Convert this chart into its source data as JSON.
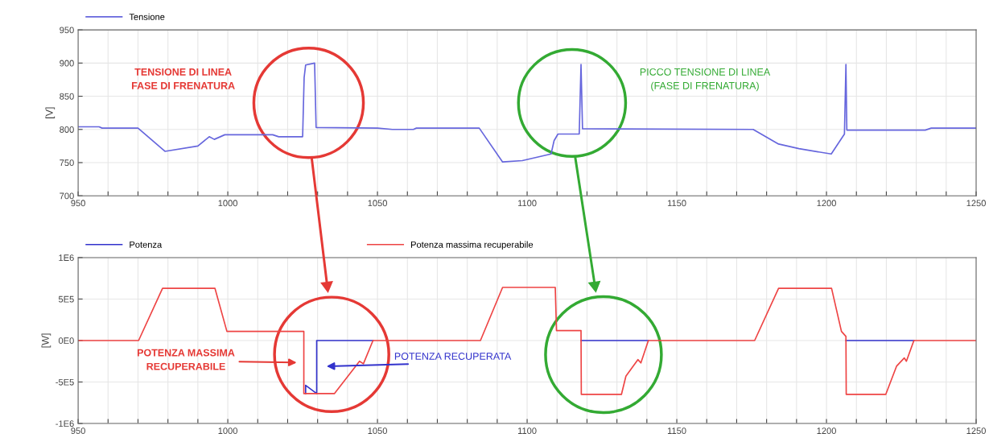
{
  "chart_data": [
    {
      "type": "line",
      "ylabel": "[V]",
      "legend": "top left",
      "grid": true,
      "xlim": [
        950,
        1250
      ],
      "ylim": [
        700,
        950
      ],
      "xticks": [
        950,
        {
          "value": 960,
          "label": null
        },
        {
          "value": 970,
          "label": null
        },
        {
          "value": 980,
          "label": null
        },
        {
          "value": 990,
          "label": null
        },
        1000,
        {
          "value": 1010,
          "label": null
        },
        {
          "value": 1020,
          "label": null
        },
        {
          "value": 1030,
          "label": null
        },
        {
          "value": 1040,
          "label": null
        },
        1050,
        {
          "value": 1060,
          "label": null
        },
        {
          "value": 1070,
          "label": null
        },
        {
          "value": 1080,
          "label": null
        },
        {
          "value": 1090,
          "label": null
        },
        1100,
        {
          "value": 1110,
          "label": null
        },
        {
          "value": 1120,
          "label": null
        },
        {
          "value": 1130,
          "label": null
        },
        {
          "value": 1140,
          "label": null
        },
        1150,
        {
          "value": 1160,
          "label": null
        },
        {
          "value": 1170,
          "label": null
        },
        {
          "value": 1180,
          "label": null
        },
        {
          "value": 1190,
          "label": null
        },
        1200,
        {
          "value": 1210,
          "label": null
        },
        {
          "value": 1220,
          "label": null
        },
        {
          "value": 1230,
          "label": null
        },
        {
          "value": 1240,
          "label": null
        },
        1250
      ],
      "yticks": [
        700,
        750,
        800,
        850,
        900,
        950
      ],
      "annotations": [
        "TENSIONE DI LINEA\nFASE DI FRENATURA",
        "PICCO TENSIONE DI LINEA\n(FASE DI FRENATURA)"
      ],
      "series": [
        {
          "name": "Tensione",
          "color": "#6666dd",
          "x": [
            950,
            957,
            958,
            970,
            979,
            990,
            993.8,
            995.5,
            999,
            1015,
            1017,
            1025,
            1025.5,
            1026,
            1029,
            1029.5,
            1050,
            1055,
            1062,
            1063,
            1084,
            1091.8,
            1098.4,
            1108,
            1109,
            1110.3,
            1117.4,
            1118,
            1118.5,
            1175.5,
            1184,
            1190.8,
            1201.6,
            1206,
            1206.5,
            1206.8,
            1225.5,
            1233,
            1235,
            1250
          ],
          "values": [
            804,
            804,
            802,
            802,
            767,
            775,
            789,
            785,
            792,
            792,
            789,
            789,
            878,
            897,
            900,
            803,
            802,
            800,
            800,
            802,
            802,
            751,
            753,
            763,
            783,
            793,
            793,
            898,
            801,
            800,
            778,
            771,
            763,
            793,
            898,
            799,
            799,
            799,
            802,
            802
          ]
        }
      ]
    },
    {
      "type": "line",
      "ylabel": "[W]",
      "legend": "top left",
      "grid": true,
      "xlim": [
        950,
        1250
      ],
      "ylim": [
        -1000000,
        1000000
      ],
      "xticks": [
        950,
        {
          "value": 960,
          "label": null
        },
        {
          "value": 970,
          "label": null
        },
        {
          "value": 980,
          "label": null
        },
        {
          "value": 990,
          "label": null
        },
        1000,
        {
          "value": 1010,
          "label": null
        },
        {
          "value": 1020,
          "label": null
        },
        {
          "value": 1030,
          "label": null
        },
        {
          "value": 1040,
          "label": null
        },
        1050,
        {
          "value": 1060,
          "label": null
        },
        {
          "value": 1070,
          "label": null
        },
        {
          "value": 1080,
          "label": null
        },
        {
          "value": 1090,
          "label": null
        },
        1100,
        {
          "value": 1110,
          "label": null
        },
        {
          "value": 1120,
          "label": null
        },
        {
          "value": 1130,
          "label": null
        },
        {
          "value": 1140,
          "label": null
        },
        1150,
        {
          "value": 1160,
          "label": null
        },
        {
          "value": 1170,
          "label": null
        },
        {
          "value": 1180,
          "label": null
        },
        {
          "value": 1190,
          "label": null
        },
        1200,
        {
          "value": 1210,
          "label": null
        },
        {
          "value": 1220,
          "label": null
        },
        {
          "value": 1230,
          "label": null
        },
        {
          "value": 1240,
          "label": null
        },
        1250
      ],
      "yticks": [
        {
          "value": -1000000,
          "label": "-1E6"
        },
        {
          "value": -500000,
          "label": "-5E5"
        },
        {
          "value": 0,
          "label": "0E0"
        },
        {
          "value": 500000,
          "label": "5E5"
        },
        {
          "value": 1000000,
          "label": "1E6"
        }
      ],
      "annotations": [
        "POTENZA MASSIMA\nRECUPERABILE",
        "POTENZA RECUPERATA"
      ],
      "series": [
        {
          "name": "Potenza",
          "color": "#3333cc",
          "x": [
            1026,
            1026,
            1029.7,
            1029.7,
            1048.5,
            null,
            1118,
            1140.5,
            null,
            1206.5,
            1229.2
          ],
          "values": [
            -640000,
            -540000,
            -640000,
            0,
            0,
            null,
            0,
            0,
            null,
            0,
            0
          ]
        },
        {
          "name": "Potenza massima recuperabile",
          "color": "#ee4444",
          "x": [
            950,
            970.2,
            978.2,
            995.7,
            999.7,
            1025.4,
            1025.4,
            1035.6,
            1044,
            1045.3,
            1048.5,
            1084.4,
            1091.8,
            1109.4,
            1109.8,
            1118,
            1118.1,
            1131.5,
            1133,
            1137,
            1138,
            1140.5,
            1176,
            1184,
            1201.7,
            1205,
            1206.5,
            1206.6,
            1219.8,
            1223.4,
            1226,
            1226.7,
            1229.2,
            1250
          ],
          "values": [
            0,
            0,
            630000,
            630000,
            110000,
            110000,
            -640000,
            -640000,
            -250000,
            -280000,
            0,
            0,
            640000,
            640000,
            120000,
            120000,
            -650000,
            -650000,
            -430000,
            -230000,
            -270000,
            0,
            0,
            630000,
            630000,
            110000,
            50000,
            -650000,
            -650000,
            -310000,
            -210000,
            -250000,
            0,
            0
          ]
        }
      ]
    }
  ]
}
